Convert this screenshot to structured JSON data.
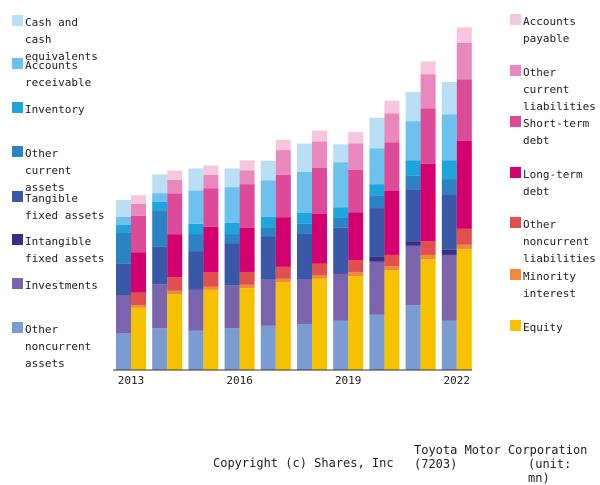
{
  "chart_data": {
    "type": "bar",
    "title": "Toyota Motor Corporation (7203)",
    "unit": "(unit: mn)",
    "categories": [
      "2013",
      "2014",
      "2015",
      "2016",
      "2017",
      "2018",
      "2019",
      "2020",
      "2021",
      "2022"
    ],
    "tick_labels": {
      "0": "2013",
      "3": "2016",
      "6": "2019",
      "9": "2022"
    },
    "assets": [
      {
        "name": "Other noncurrent assets",
        "color": "#7b9bd3",
        "values": [
          4.3,
          4.9,
          4.6,
          4.9,
          5.2,
          5.4,
          5.8,
          6.5,
          7.6,
          5.8
        ]
      },
      {
        "name": "Investments",
        "color": "#7a64ad",
        "values": [
          4.5,
          5.1,
          4.8,
          5.0,
          5.4,
          5.2,
          5.5,
          6.2,
          7.0,
          7.7
        ]
      },
      {
        "name": "Intangible fixed assets",
        "color": "#3b2d86",
        "values": [
          0.05,
          0.05,
          0.05,
          0.05,
          0.06,
          0.06,
          0.08,
          0.6,
          0.5,
          0.6
        ]
      },
      {
        "name": "Tangible fixed assets",
        "color": "#3a58a8",
        "values": [
          3.6,
          4.4,
          4.5,
          4.9,
          5.0,
          5.3,
          5.3,
          5.7,
          6.1,
          6.5
        ]
      },
      {
        "name": "Other current assets",
        "color": "#2b83c6",
        "values": [
          3.7,
          4.3,
          2.0,
          1.1,
          1.0,
          1.2,
          1.2,
          1.5,
          1.6,
          1.8
        ]
      },
      {
        "name": "Inventory",
        "color": "#1ea5dd",
        "values": [
          0.9,
          1.0,
          1.2,
          1.3,
          1.3,
          1.3,
          1.2,
          1.3,
          1.8,
          2.2
        ]
      },
      {
        "name": "Accounts receivable",
        "color": "#6dc1ef",
        "values": [
          0.9,
          1.0,
          3.9,
          4.2,
          4.3,
          4.8,
          5.3,
          4.2,
          4.6,
          5.4
        ]
      },
      {
        "name": "Cash and cash equivalents",
        "color": "#b9dff5",
        "values": [
          2.0,
          2.2,
          2.6,
          2.2,
          2.3,
          3.3,
          2.1,
          3.6,
          3.4,
          3.8
        ]
      }
    ],
    "liabilities": [
      {
        "name": "Equity",
        "color": "#f6c200",
        "values": [
          7.3,
          8.9,
          9.4,
          9.6,
          10.3,
          10.7,
          11.0,
          11.7,
          13.0,
          14.2
        ]
      },
      {
        "name": "Minority interest",
        "color": "#ef8c3b",
        "values": [
          0.3,
          0.4,
          0.4,
          0.4,
          0.4,
          0.4,
          0.5,
          0.5,
          0.5,
          0.5
        ]
      },
      {
        "name": "Other noncurrent liabilities",
        "color": "#e0504e",
        "values": [
          1.5,
          1.6,
          1.7,
          1.5,
          1.4,
          1.4,
          1.4,
          1.3,
          1.6,
          1.9
        ]
      },
      {
        "name": "Long-term debt",
        "color": "#d4006f",
        "values": [
          4.7,
          5.0,
          5.3,
          5.2,
          5.8,
          5.8,
          5.6,
          7.5,
          9.1,
          10.3
        ]
      },
      {
        "name": "Short-term debt",
        "color": "#dc4a98",
        "values": [
          4.3,
          4.8,
          4.5,
          5.1,
          5.0,
          5.4,
          5.0,
          5.7,
          6.5,
          7.2
        ]
      },
      {
        "name": "Other current liabilities",
        "color": "#e888bd",
        "values": [
          1.4,
          1.6,
          1.6,
          1.6,
          2.9,
          3.1,
          3.1,
          3.4,
          4.0,
          4.3
        ]
      },
      {
        "name": "Accounts payable",
        "color": "#f6c6dd",
        "values": [
          1.0,
          1.1,
          1.1,
          1.2,
          1.2,
          1.3,
          1.3,
          1.5,
          1.5,
          1.8
        ]
      }
    ],
    "ylim": [
      0,
      42
    ],
    "grid": false
  },
  "legend_left": [
    {
      "label": "Cash and\ncash\nequivalents",
      "color": "#b9dff5"
    },
    {
      "label": "Accounts\nreceivable",
      "color": "#6dc1ef"
    },
    {
      "label": "Inventory",
      "color": "#1ea5dd"
    },
    {
      "label": "Other\ncurrent\nassets",
      "color": "#2b83c6"
    },
    {
      "label": "Tangible\nfixed assets",
      "color": "#3a58a8"
    },
    {
      "label": "Intangible\nfixed assets",
      "color": "#3b2d86"
    },
    {
      "label": "Investments",
      "color": "#7a64ad"
    },
    {
      "label": "Other\nnoncurrent\nassets",
      "color": "#7b9bd3"
    }
  ],
  "legend_right": [
    {
      "label": "Accounts\npayable",
      "color": "#f6c6dd"
    },
    {
      "label": "Other\ncurrent\nliabilities",
      "color": "#e888bd"
    },
    {
      "label": "Short-term\ndebt",
      "color": "#dc4a98"
    },
    {
      "label": "Long-term\ndebt",
      "color": "#d4006f"
    },
    {
      "label": "Other\nnoncurrent\nliabilities",
      "color": "#e0504e"
    },
    {
      "label": "Minority\ninterest",
      "color": "#ef8c3b"
    },
    {
      "label": "Equity",
      "color": "#f6c200"
    }
  ],
  "footer": {
    "company": "Toyota Motor Corporation (7203)",
    "unit": "(unit: mn)",
    "copyright": "Copyright (c) Shares, Inc"
  }
}
